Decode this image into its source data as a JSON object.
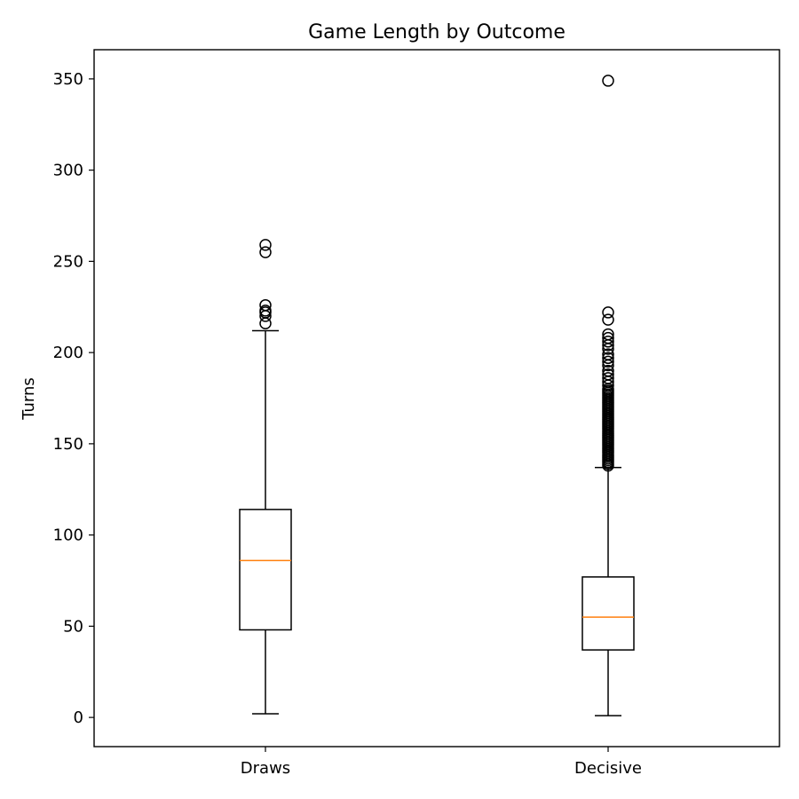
{
  "chart_data": {
    "type": "box",
    "title": "Game Length by Outcome",
    "xlabel": "",
    "ylabel": "Turns",
    "ylim": [
      -16,
      366
    ],
    "yticks": [
      0,
      50,
      100,
      150,
      200,
      250,
      300,
      350
    ],
    "grid": false,
    "legend": "none",
    "categories": [
      "Draws",
      "Decisive"
    ],
    "boxes": [
      {
        "category": "Draws",
        "whisker_low": 2,
        "q1": 48,
        "median": 86,
        "q3": 114,
        "whisker_high": 212,
        "outliers": [
          216,
          220,
          222,
          223,
          226,
          255,
          259
        ]
      },
      {
        "category": "Decisive",
        "whisker_low": 1,
        "q1": 37,
        "median": 55,
        "q3": 77,
        "whisker_high": 137,
        "outliers": [
          138,
          139,
          140,
          141,
          142,
          143,
          144,
          145,
          146,
          147,
          148,
          149,
          150,
          151,
          152,
          153,
          154,
          155,
          156,
          157,
          158,
          159,
          160,
          161,
          162,
          163,
          164,
          165,
          166,
          167,
          168,
          169,
          170,
          171,
          172,
          173,
          174,
          175,
          176,
          177,
          178,
          179,
          180,
          182,
          184,
          186,
          188,
          190,
          193,
          195,
          197,
          199,
          202,
          204,
          206,
          208,
          210,
          218,
          222,
          349
        ]
      }
    ],
    "colors": {
      "box": "#000000",
      "median": "#ff7f0e",
      "outlier": "#000000"
    }
  }
}
